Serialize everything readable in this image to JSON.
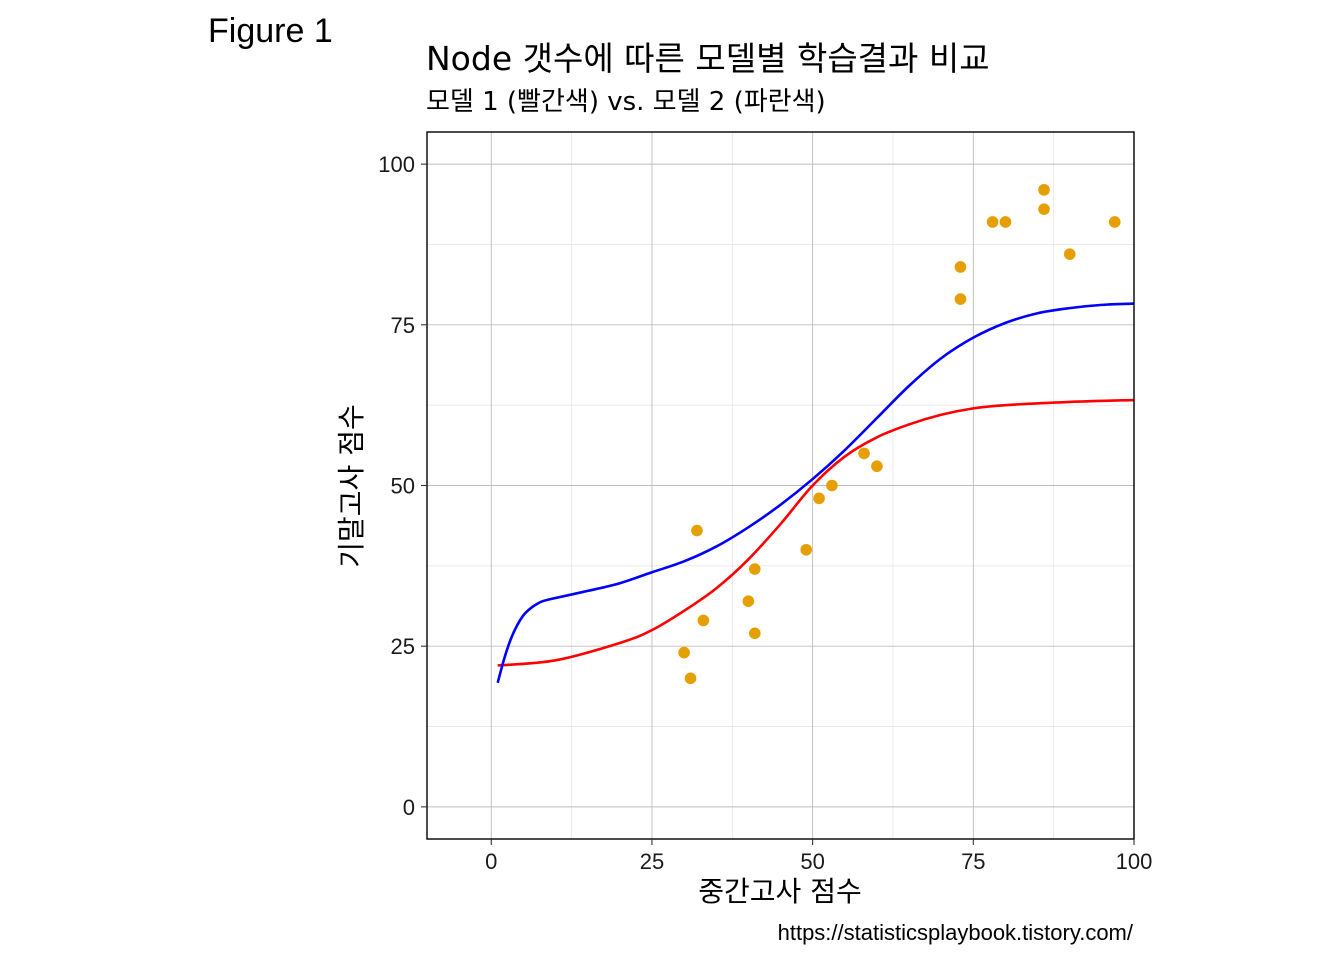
{
  "figure_label": "Figure 1",
  "caption": "https://statisticsplaybook.tistory.com/",
  "chart_data": {
    "type": "scatter",
    "title": "Node 갯수에 따른 모델별 학습결과 비교",
    "subtitle": "모델 1 (빨간색) vs. 모델 2 (파란색)",
    "xlabel": "중간고사 점수",
    "ylabel": "기말고사 점수",
    "xlim": [
      -10,
      100
    ],
    "ylim": [
      -5,
      105
    ],
    "x_ticks": [
      0,
      25,
      50,
      75,
      100
    ],
    "y_ticks": [
      0,
      25,
      50,
      75,
      100
    ],
    "x_tick_labels": [
      "0",
      "25",
      "50",
      "75",
      "100"
    ],
    "y_tick_labels": [
      "0",
      "25",
      "50",
      "75",
      "100"
    ],
    "grid": true,
    "points": {
      "color": "#E69F00",
      "x": [
        30,
        31,
        32,
        33,
        40,
        41,
        41,
        49,
        51,
        53,
        58,
        60,
        73,
        73,
        78,
        80,
        86,
        86,
        90,
        97
      ],
      "y": [
        24,
        20,
        43,
        29,
        32,
        37,
        27,
        40,
        48,
        50,
        55,
        53,
        84,
        79,
        91,
        91,
        96,
        93,
        86,
        91
      ]
    },
    "series": [
      {
        "color": "#FF0000",
        "x": [
          1,
          10,
          20,
          25,
          30,
          35,
          40,
          45,
          50,
          55,
          60,
          65,
          70,
          75,
          80,
          90,
          100
        ],
        "y": [
          22,
          22.8,
          25.5,
          27.5,
          30.5,
          34,
          38.5,
          44,
          50,
          54.5,
          57.5,
          59.5,
          61,
          62,
          62.5,
          63,
          63.3
        ]
      },
      {
        "color": "#0000FF",
        "x": [
          1,
          2,
          3,
          4,
          5,
          6,
          7,
          8,
          10,
          15,
          20,
          25,
          30,
          35,
          40,
          45,
          50,
          55,
          60,
          65,
          70,
          75,
          80,
          85,
          90,
          95,
          100
        ],
        "y": [
          19.3,
          23,
          26,
          28.2,
          29.8,
          30.8,
          31.5,
          32,
          32.5,
          33.6,
          34.8,
          36.5,
          38.2,
          40.5,
          43.5,
          47,
          51,
          55.5,
          60.5,
          65.5,
          69.8,
          73,
          75.3,
          76.8,
          77.6,
          78.1,
          78.3
        ]
      }
    ]
  }
}
